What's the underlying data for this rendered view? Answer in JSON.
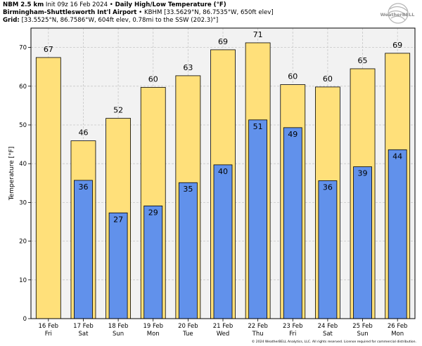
{
  "header": {
    "line1_bold": "NBM 2.5 km",
    "line1_init": "Init 09z 16 Feb 2024",
    "line1_sep": "•",
    "line1_title": "Daily High/Low Temperature (°F)",
    "line2_bold": "Birmingham-Shuttlesworth Int'l Airport",
    "line2_sep": "•",
    "line2_rest": "KBHM [33.5629°N, 86.7535°W, 650ft elev]",
    "line3_bold": "Grid:",
    "line3_rest": "[33.5525°N, 86.7586°W, 604ft elev, 0.78mi to the SSW (202.3)°]"
  },
  "logo": {
    "text": "WeatherBELL",
    "color": "#9a9a9a"
  },
  "footer": {
    "text": "© 2024 WeatherBELL Analytics, LLC. All rights reserved. License required for commercial distribution."
  },
  "colors": {
    "high": "#ffe07a",
    "low": "#6191eb",
    "plot_bg": "#f2f2f2",
    "grid": "#c8c8c8"
  },
  "chart_data": {
    "type": "bar",
    "xlabel": "",
    "ylabel": "Temperature [°F]",
    "ylim": [
      0,
      75
    ],
    "yticks": [
      0,
      10,
      20,
      30,
      40,
      50,
      60,
      70
    ],
    "grid": true,
    "categories": [
      {
        "date": "16 Feb",
        "day": "Fri"
      },
      {
        "date": "17 Feb",
        "day": "Sat"
      },
      {
        "date": "18 Feb",
        "day": "Sun"
      },
      {
        "date": "19 Feb",
        "day": "Mon"
      },
      {
        "date": "20 Feb",
        "day": "Tue"
      },
      {
        "date": "21 Feb",
        "day": "Wed"
      },
      {
        "date": "22 Feb",
        "day": "Thu"
      },
      {
        "date": "23 Feb",
        "day": "Fri"
      },
      {
        "date": "24 Feb",
        "day": "Sat"
      },
      {
        "date": "25 Feb",
        "day": "Sun"
      },
      {
        "date": "26 Feb",
        "day": "Mon"
      }
    ],
    "series": [
      {
        "key": "high",
        "values": [
          67.4,
          45.9,
          51.7,
          59.7,
          62.7,
          69.4,
          71.2,
          60.4,
          59.8,
          64.5,
          68.5
        ],
        "labels": [
          "67",
          "46",
          "52",
          "60",
          "63",
          "69",
          "71",
          "60",
          "60",
          "65",
          "69"
        ]
      },
      {
        "key": "low",
        "values": [
          null,
          35.7,
          27.3,
          29.1,
          35.1,
          39.7,
          51.3,
          49.3,
          35.6,
          39.2,
          43.6
        ],
        "labels": [
          "",
          "36",
          "27",
          "29",
          "35",
          "40",
          "51",
          "49",
          "36",
          "39",
          "44"
        ]
      }
    ]
  }
}
